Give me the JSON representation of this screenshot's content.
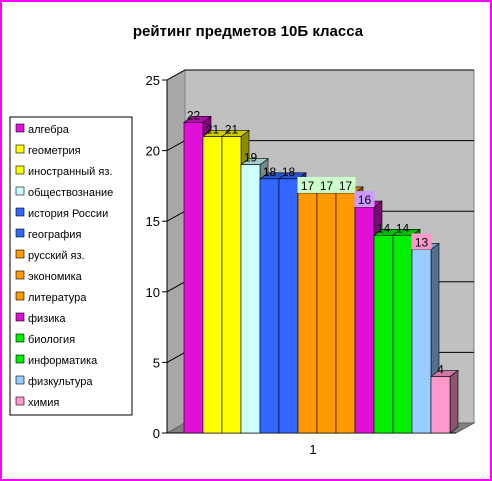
{
  "chart_data": {
    "type": "bar",
    "title": "рейтинг предметов 10Б класса",
    "xlabel": "",
    "ylabel": "",
    "categories": [
      "1"
    ],
    "ylim": [
      0,
      25
    ],
    "yticks": [
      0,
      5,
      10,
      15,
      20,
      25
    ],
    "grid": true,
    "legend_position": "left",
    "series": [
      {
        "name": "алгебра",
        "values": [
          22
        ],
        "color": "#e010d8"
      },
      {
        "name": "геометрия",
        "values": [
          21
        ],
        "color": "#ffff00"
      },
      {
        "name": "иностранный яз.",
        "values": [
          21
        ],
        "color": "#ffff00"
      },
      {
        "name": "обществознание",
        "values": [
          19
        ],
        "color": "#ccffff"
      },
      {
        "name": "история России",
        "values": [
          18
        ],
        "color": "#3366ff"
      },
      {
        "name": "география",
        "values": [
          18
        ],
        "color": "#3366ff"
      },
      {
        "name": "русский яз.",
        "values": [
          17
        ],
        "color": "#ff9900"
      },
      {
        "name": "экономика",
        "values": [
          17
        ],
        "color": "#ff9900"
      },
      {
        "name": "литература",
        "values": [
          17
        ],
        "color": "#ff9900"
      },
      {
        "name": "физика",
        "values": [
          16
        ],
        "color": "#e010d8"
      },
      {
        "name": "биология",
        "values": [
          14
        ],
        "color": "#00ee00"
      },
      {
        "name": "информатика",
        "values": [
          14
        ],
        "color": "#00ee00"
      },
      {
        "name": "физкультура",
        "values": [
          13
        ],
        "color": "#99ccff"
      },
      {
        "name": "химия",
        "values": [
          4
        ],
        "color": "#ff99cc"
      }
    ],
    "label_backgrounds": {
      "17": "#ccffcc",
      "16": "#cc99ff",
      "13": "#ff99cc"
    }
  }
}
